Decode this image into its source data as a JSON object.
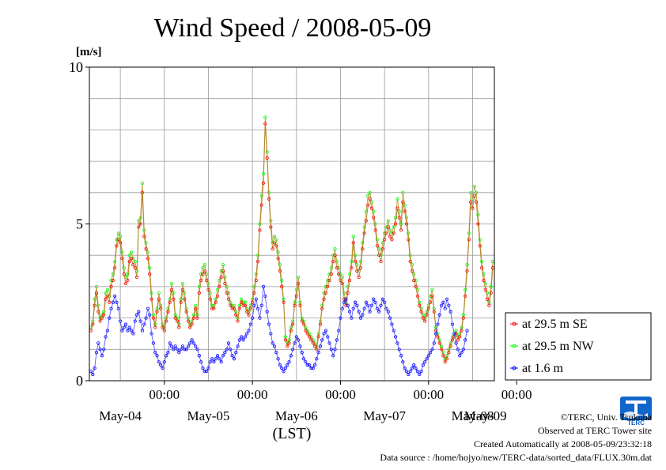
{
  "chart_data": {
    "type": "line",
    "title": "Wind Speed / 2008-05-09",
    "ylabel": "[m/s]",
    "xlabel": "(LST)",
    "ylim": [
      0,
      10
    ],
    "yticks": [
      "0",
      "5",
      "10"
    ],
    "x_time_ticks": [
      "00:00",
      "00:00",
      "00:00",
      "00:00",
      "00:00"
    ],
    "x_date_ticks": [
      "May-04",
      "May-05",
      "May-06",
      "May-07",
      "May-08",
      "May-09"
    ],
    "grid": true,
    "legend_position": "right",
    "sample_interval": "30 min",
    "series": [
      {
        "name": "at 29.5 m SE",
        "color": "#ff0000",
        "values": [
          1.6,
          1.8,
          2.4,
          2.8,
          2.2,
          1.9,
          2.0,
          2.1,
          2.6,
          2.7,
          2.5,
          3.0,
          3.2,
          3.6,
          4.3,
          4.5,
          4.4,
          3.9,
          3.4,
          3.1,
          3.2,
          3.8,
          3.9,
          3.7,
          3.6,
          3.3,
          4.9,
          5.0,
          6.0,
          4.6,
          4.2,
          3.9,
          3.4,
          2.6,
          2.0,
          1.7,
          2.2,
          2.6,
          2.3,
          1.7,
          1.6,
          1.9,
          2.2,
          2.5,
          2.9,
          2.6,
          2.0,
          1.9,
          1.7,
          2.5,
          2.9,
          2.6,
          2.2,
          1.9,
          1.7,
          1.8,
          2.0,
          2.3,
          2.0,
          2.8,
          3.2,
          3.4,
          3.5,
          3.2,
          2.9,
          2.6,
          2.3,
          2.3,
          2.5,
          2.7,
          3.0,
          3.3,
          3.5,
          3.1,
          2.8,
          2.6,
          2.4,
          2.3,
          2.3,
          2.1,
          1.9,
          2.3,
          2.5,
          2.4,
          2.4,
          2.2,
          2.1,
          2.3,
          2.5,
          2.8,
          3.2,
          3.8,
          4.8,
          5.6,
          6.3,
          8.2,
          7.1,
          5.8,
          4.9,
          4.2,
          4.4,
          4.3,
          3.9,
          3.5,
          3.0,
          2.5,
          1.3,
          1.1,
          1.2,
          1.6,
          1.8,
          2.4,
          2.7,
          3.1,
          2.4,
          1.9,
          1.8,
          1.6,
          1.5,
          1.4,
          1.3,
          1.2,
          1.1,
          1.0,
          1.4,
          1.8,
          2.3,
          2.6,
          2.8,
          3.0,
          3.2,
          3.4,
          3.8,
          4.0,
          3.6,
          3.4,
          3.2,
          3.1,
          2.6,
          2.4,
          2.8,
          3.2,
          3.6,
          4.4,
          3.8,
          3.5,
          3.3,
          3.6,
          4.2,
          4.7,
          5.1,
          5.6,
          5.8,
          5.5,
          5.2,
          4.8,
          4.3,
          4.0,
          3.8,
          4.2,
          4.5,
          4.7,
          4.9,
          4.6,
          4.5,
          4.7,
          5.0,
          5.5,
          5.2,
          4.8,
          5.7,
          5.4,
          5.0,
          4.5,
          3.8,
          3.5,
          3.2,
          3.0,
          2.7,
          2.4,
          2.2,
          2.0,
          1.9,
          2.1,
          2.3,
          2.5,
          2.7,
          2.2,
          1.6,
          1.4,
          1.2,
          1.0,
          0.8,
          0.6,
          0.7,
          0.9,
          1.1,
          1.3,
          1.4,
          1.5,
          1.3,
          1.4,
          1.6,
          2.0,
          2.7,
          3.5,
          4.5,
          5.7,
          5.5,
          5.9,
          5.7,
          5.0,
          4.3,
          3.6,
          3.2,
          2.9,
          2.6,
          2.4,
          2.8,
          3.6
        ]
      },
      {
        "name": "at 29.5 m NW",
        "color": "#00ff00",
        "values": [
          1.7,
          1.9,
          2.6,
          3.0,
          2.4,
          2.0,
          2.1,
          2.2,
          2.8,
          2.9,
          2.7,
          3.2,
          3.4,
          3.8,
          4.5,
          4.7,
          4.6,
          4.1,
          3.6,
          3.3,
          3.4,
          4.0,
          4.1,
          3.9,
          3.8,
          3.5,
          5.1,
          5.2,
          6.3,
          4.8,
          4.4,
          4.1,
          3.6,
          2.8,
          2.1,
          1.8,
          2.3,
          2.8,
          2.4,
          1.8,
          1.7,
          2.0,
          2.3,
          2.6,
          3.1,
          2.8,
          2.1,
          2.0,
          1.8,
          2.6,
          3.1,
          2.8,
          2.3,
          2.0,
          1.8,
          1.9,
          2.1,
          2.4,
          2.1,
          3.0,
          3.4,
          3.6,
          3.7,
          3.4,
          3.1,
          2.8,
          2.4,
          2.4,
          2.6,
          2.9,
          3.2,
          3.5,
          3.7,
          3.3,
          3.0,
          2.8,
          2.5,
          2.4,
          2.4,
          2.2,
          2.0,
          2.4,
          2.6,
          2.5,
          2.5,
          2.3,
          2.2,
          2.4,
          2.6,
          3.0,
          3.4,
          4.0,
          5.0,
          5.9,
          6.6,
          8.4,
          7.3,
          6.0,
          5.1,
          4.4,
          4.6,
          4.5,
          4.1,
          3.7,
          3.2,
          2.6,
          1.4,
          1.2,
          1.3,
          1.7,
          1.9,
          2.5,
          2.9,
          3.3,
          2.5,
          2.0,
          1.9,
          1.7,
          1.6,
          1.5,
          1.4,
          1.3,
          1.2,
          1.1,
          1.5,
          1.9,
          2.4,
          2.8,
          3.0,
          3.2,
          3.4,
          3.6,
          4.0,
          4.2,
          3.8,
          3.6,
          3.4,
          3.3,
          2.8,
          2.5,
          3.0,
          3.4,
          3.8,
          4.6,
          4.0,
          3.7,
          3.5,
          3.8,
          4.4,
          4.9,
          5.4,
          5.9,
          6.0,
          5.7,
          5.4,
          5.0,
          4.5,
          4.2,
          4.0,
          4.4,
          4.7,
          4.9,
          5.1,
          4.8,
          4.7,
          4.9,
          5.2,
          5.8,
          5.4,
          5.0,
          6.0,
          5.6,
          5.2,
          4.7,
          4.0,
          3.7,
          3.4,
          3.2,
          2.9,
          2.5,
          2.3,
          2.1,
          2.0,
          2.2,
          2.4,
          2.7,
          2.9,
          2.3,
          1.7,
          1.5,
          1.3,
          1.1,
          0.9,
          0.7,
          0.8,
          1.0,
          1.2,
          1.4,
          1.5,
          1.6,
          1.4,
          1.5,
          1.7,
          2.1,
          2.9,
          3.7,
          4.7,
          6.0,
          5.8,
          6.2,
          6.0,
          5.3,
          4.5,
          3.8,
          3.4,
          3.1,
          2.8,
          2.5,
          3.0,
          3.8
        ]
      },
      {
        "name": "at 1.6 m",
        "color": "#0000ff",
        "values": [
          0.3,
          0.2,
          0.4,
          0.9,
          1.2,
          1.0,
          0.8,
          1.0,
          1.4,
          1.6,
          2.0,
          2.3,
          2.5,
          2.7,
          2.5,
          2.3,
          1.9,
          1.6,
          1.7,
          1.8,
          1.6,
          1.7,
          1.6,
          1.5,
          1.9,
          2.1,
          2.2,
          1.9,
          1.6,
          1.8,
          2.0,
          2.3,
          2.1,
          1.5,
          1.2,
          0.9,
          0.8,
          0.6,
          0.5,
          0.4,
          0.6,
          0.8,
          0.9,
          1.2,
          1.1,
          1.0,
          1.1,
          1.0,
          0.9,
          1.0,
          1.1,
          1.0,
          1.0,
          1.1,
          1.2,
          1.3,
          1.2,
          1.1,
          1.0,
          0.8,
          0.6,
          0.4,
          0.3,
          0.3,
          0.4,
          0.6,
          0.7,
          0.6,
          0.7,
          0.8,
          0.7,
          0.6,
          0.8,
          0.9,
          1.0,
          1.2,
          1.0,
          0.8,
          0.7,
          0.9,
          1.1,
          1.3,
          1.4,
          1.3,
          1.4,
          1.5,
          1.6,
          1.8,
          2.0,
          2.4,
          2.6,
          2.3,
          2.0,
          2.4,
          3.0,
          2.7,
          2.2,
          1.8,
          1.5,
          1.2,
          1.1,
          0.9,
          0.7,
          0.5,
          0.4,
          0.3,
          0.4,
          0.5,
          0.6,
          0.8,
          1.0,
          1.2,
          1.4,
          1.3,
          1.1,
          0.9,
          0.7,
          0.6,
          0.5,
          0.5,
          0.4,
          0.4,
          0.5,
          0.7,
          0.9,
          1.1,
          1.3,
          1.5,
          1.6,
          1.4,
          1.2,
          1.0,
          0.8,
          1.0,
          1.3,
          1.6,
          2.0,
          2.3,
          2.5,
          2.6,
          2.4,
          2.2,
          2.0,
          2.3,
          2.5,
          2.4,
          2.2,
          2.0,
          2.1,
          2.3,
          2.5,
          2.4,
          2.2,
          2.4,
          2.6,
          2.5,
          2.3,
          2.2,
          2.4,
          2.6,
          2.5,
          2.3,
          2.2,
          2.0,
          1.8,
          1.6,
          1.4,
          1.2,
          1.0,
          0.8,
          0.6,
          0.4,
          0.3,
          0.2,
          0.3,
          0.4,
          0.5,
          0.4,
          0.3,
          0.2,
          0.3,
          0.5,
          0.6,
          0.7,
          0.8,
          0.9,
          1.0,
          1.2,
          1.5,
          1.8,
          2.1,
          2.4,
          2.5,
          2.3,
          2.6,
          2.4,
          2.2,
          1.8,
          1.5,
          1.2,
          1.0,
          0.8,
          0.9,
          1.0,
          1.3,
          1.6
        ]
      }
    ]
  },
  "footer": {
    "credit": "©TERC, Univ. Tsukuba",
    "site": "Observed at TERC Tower site",
    "created": "Created Automatically at 2008-05-09/23:32:18",
    "source": "Data source : /home/hojyo/new/TERC-data/sorted_data/FLUX.30m.dat"
  },
  "logo": {
    "text": "TERC",
    "color": "#1166cc"
  }
}
